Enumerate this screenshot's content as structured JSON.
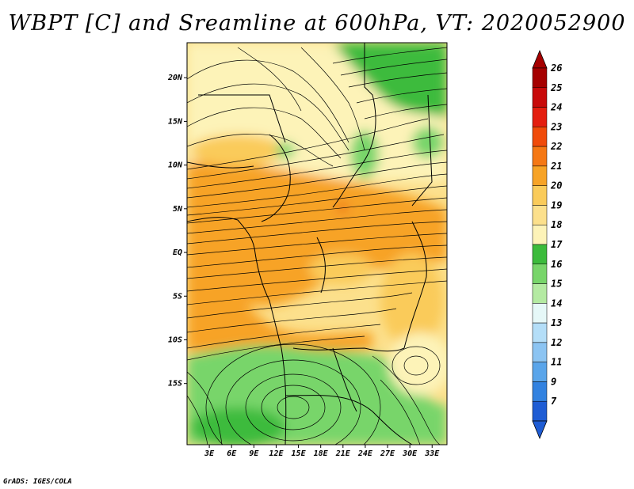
{
  "title": "WBPT [C] and Sreamline at 600hPa, VT: 2020052900",
  "credit": "GrADS: IGES/COLA",
  "map": {
    "lon_range": [
      0,
      35
    ],
    "lat_range": [
      -22,
      24
    ],
    "lat_ticks": [
      {
        "value": 20,
        "label": "20N"
      },
      {
        "value": 15,
        "label": "15N"
      },
      {
        "value": 10,
        "label": "10N"
      },
      {
        "value": 5,
        "label": "5N"
      },
      {
        "value": 0,
        "label": "EQ"
      },
      {
        "value": -5,
        "label": "5S"
      },
      {
        "value": -10,
        "label": "10S"
      },
      {
        "value": -15,
        "label": "15S"
      }
    ],
    "lon_ticks": [
      {
        "value": 3,
        "label": "3E"
      },
      {
        "value": 6,
        "label": "6E"
      },
      {
        "value": 9,
        "label": "9E"
      },
      {
        "value": 12,
        "label": "12E"
      },
      {
        "value": 15,
        "label": "15E"
      },
      {
        "value": 18,
        "label": "18E"
      },
      {
        "value": 21,
        "label": "21E"
      },
      {
        "value": 24,
        "label": "24E"
      },
      {
        "value": 27,
        "label": "27E"
      },
      {
        "value": 30,
        "label": "30E"
      },
      {
        "value": 33,
        "label": "33E"
      }
    ]
  },
  "colorbar": {
    "levels": [
      {
        "label": "26",
        "color": "#a50000"
      },
      {
        "label": "25",
        "color": "#c80a0a"
      },
      {
        "label": "24",
        "color": "#e41e0f"
      },
      {
        "label": "23",
        "color": "#f04b0a"
      },
      {
        "label": "22",
        "color": "#f57814"
      },
      {
        "label": "21",
        "color": "#f7a326"
      },
      {
        "label": "20",
        "color": "#facb5a"
      },
      {
        "label": "19",
        "color": "#fce08c"
      },
      {
        "label": "18",
        "color": "#fdf3b8"
      },
      {
        "label": "17",
        "color": "#3cbb3c"
      },
      {
        "label": "16",
        "color": "#78d56a"
      },
      {
        "label": "15",
        "color": "#b4eaa2"
      },
      {
        "label": "14",
        "color": "#e6f8f8"
      },
      {
        "label": "13",
        "color": "#b4def8"
      },
      {
        "label": "12",
        "color": "#8cc4f2"
      },
      {
        "label": "11",
        "color": "#5aa5ea"
      },
      {
        "label": "9",
        "color": "#3282e0"
      },
      {
        "label": "7",
        "color": "#1e5cd4"
      }
    ]
  }
}
